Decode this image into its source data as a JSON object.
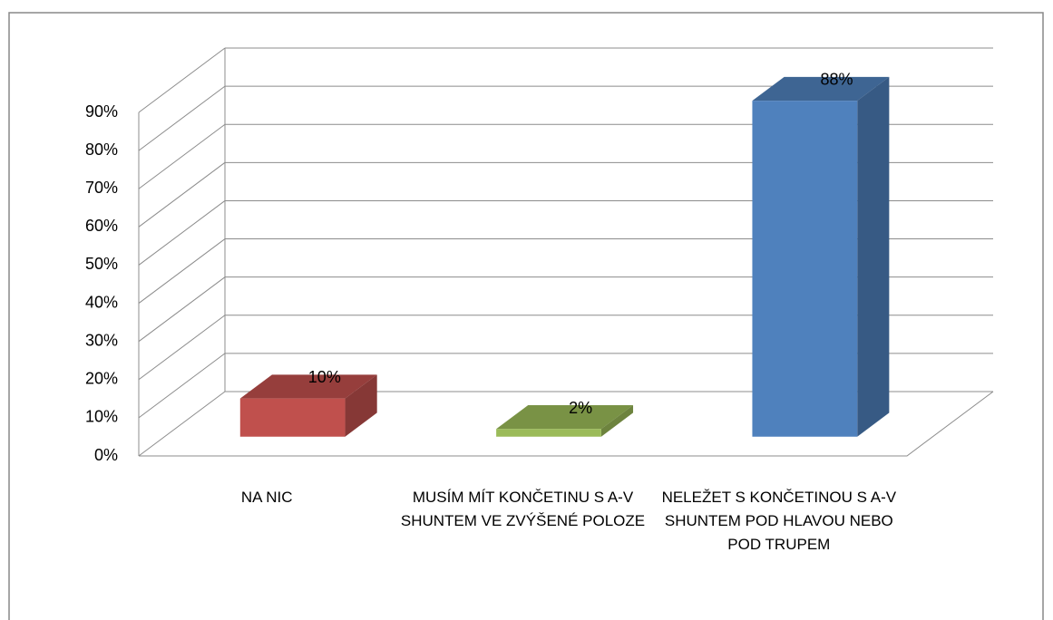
{
  "chart_data": {
    "type": "bar3d",
    "categories": [
      "NA NIC",
      "MUSÍM MÍT KONČETINU S A-V SHUNTEM VE ZVÝŠENÉ POLOZE",
      "NELEŽET S KONČETINOU S A-V SHUNTEM POD HLAVOU NEBO POD TRUPEM"
    ],
    "values": [
      10,
      2,
      88
    ],
    "value_labels": [
      "10%",
      "2%",
      "88%"
    ],
    "colors": [
      "#c0504d",
      "#9bbb59",
      "#4f81bd"
    ],
    "ylim": [
      0,
      90
    ],
    "yticks": [
      {
        "value": 0,
        "label": "0%"
      },
      {
        "value": 10,
        "label": "10%"
      },
      {
        "value": 20,
        "label": "20%"
      },
      {
        "value": 30,
        "label": "30%"
      },
      {
        "value": 40,
        "label": "40%"
      },
      {
        "value": 50,
        "label": "50%"
      },
      {
        "value": 60,
        "label": "60%"
      },
      {
        "value": 70,
        "label": "70%"
      },
      {
        "value": 80,
        "label": "80%"
      },
      {
        "value": 90,
        "label": "90%"
      }
    ],
    "grid": true
  }
}
